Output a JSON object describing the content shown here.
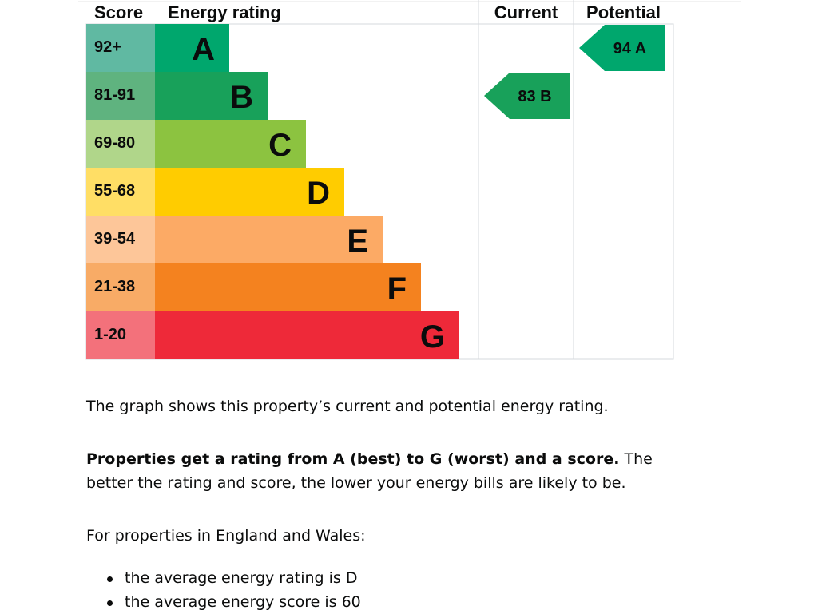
{
  "chart_data": {
    "type": "bar",
    "title": "Energy rating",
    "headers": {
      "score": "Score",
      "rating": "Energy rating",
      "current": "Current",
      "potential": "Potential"
    },
    "bands": [
      {
        "letter": "A",
        "range": "92+",
        "min": 92,
        "max": 100,
        "color": "#00a76d",
        "range_color": "#60b9a2"
      },
      {
        "letter": "B",
        "range": "81-91",
        "min": 81,
        "max": 91,
        "color": "#18a15a",
        "range_color": "#5fb37f"
      },
      {
        "letter": "C",
        "range": "69-80",
        "min": 69,
        "max": 80,
        "color": "#8cc340",
        "range_color": "#b0d68a"
      },
      {
        "letter": "D",
        "range": "55-68",
        "min": 55,
        "max": 68,
        "color": "#ffcc00",
        "range_color": "#ffde65"
      },
      {
        "letter": "E",
        "range": "39-54",
        "min": 39,
        "max": 54,
        "color": "#fcaa65",
        "range_color": "#fdc699"
      },
      {
        "letter": "F",
        "range": "21-38",
        "min": 21,
        "max": 38,
        "color": "#f4821f",
        "range_color": "#f8ab66"
      },
      {
        "letter": "G",
        "range": "1-20",
        "min": 1,
        "max": 20,
        "color": "#ee2939",
        "range_color": "#f3717b"
      }
    ],
    "current": {
      "score": 83,
      "letter": "B",
      "label": "83  B",
      "color": "#18a15a"
    },
    "potential": {
      "score": 94,
      "letter": "A",
      "label": "94  A",
      "color": "#00a76d"
    }
  },
  "text": {
    "intro": "The graph shows this property’s current and potential energy rating.",
    "rating_bold": "Properties get a rating from A (best) to G (worst) and a score.",
    "rating_rest": " The better the rating and score, the lower your energy bills are likely to be.",
    "england_wales": "For properties in England and Wales:",
    "bullets": [
      "the average energy rating is D",
      "the average energy score is 60"
    ]
  }
}
